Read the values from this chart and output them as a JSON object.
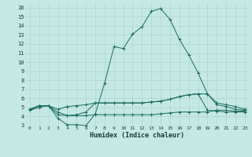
{
  "xlabel": "Humidex (Indice chaleur)",
  "bg_color": "#c5e8e5",
  "grid_color": "#afd4d0",
  "line_color": "#1a6b5e",
  "xlim": [
    -0.5,
    23.5
  ],
  "ylim": [
    3,
    16.5
  ],
  "xticks": [
    0,
    1,
    2,
    3,
    4,
    5,
    6,
    7,
    8,
    9,
    10,
    11,
    12,
    13,
    14,
    15,
    16,
    17,
    18,
    19,
    20,
    21,
    22,
    23
  ],
  "yticks": [
    3,
    4,
    5,
    6,
    7,
    8,
    9,
    10,
    11,
    12,
    13,
    14,
    15,
    16
  ],
  "series": [
    {
      "x": [
        0,
        1,
        2,
        3,
        4,
        5,
        6,
        7,
        8,
        9,
        10,
        11,
        12,
        13,
        14,
        15,
        16,
        17,
        18,
        19,
        20,
        21,
        22,
        23
      ],
      "y": [
        4.7,
        5.0,
        5.2,
        3.8,
        3.1,
        3.1,
        3.0,
        4.3,
        7.7,
        11.7,
        11.5,
        13.1,
        13.9,
        15.6,
        15.9,
        14.7,
        12.5,
        10.8,
        8.8,
        6.5,
        5.3,
        5.1,
        4.8,
        4.7
      ]
    },
    {
      "x": [
        0,
        1,
        2,
        3,
        4,
        5,
        6,
        7,
        8,
        9,
        10,
        11,
        12,
        13,
        14,
        15,
        16,
        17,
        18,
        19,
        20,
        21,
        22,
        23
      ],
      "y": [
        4.8,
        5.2,
        5.2,
        4.8,
        5.1,
        5.2,
        5.3,
        5.5,
        5.5,
        5.5,
        5.5,
        5.5,
        5.5,
        5.6,
        5.7,
        5.9,
        6.2,
        6.4,
        6.5,
        6.5,
        5.5,
        5.3,
        5.1,
        4.8
      ]
    },
    {
      "x": [
        0,
        1,
        2,
        3,
        4,
        5,
        6,
        7,
        8,
        9,
        10,
        11,
        12,
        13,
        14,
        15,
        16,
        17,
        18,
        19,
        20,
        21,
        22,
        23
      ],
      "y": [
        4.8,
        5.2,
        5.2,
        4.5,
        4.1,
        4.2,
        4.5,
        5.5,
        5.5,
        5.5,
        5.5,
        5.5,
        5.5,
        5.6,
        5.7,
        5.9,
        6.2,
        6.4,
        6.5,
        4.7,
        4.6,
        4.5,
        4.5,
        4.5
      ]
    },
    {
      "x": [
        0,
        1,
        2,
        3,
        4,
        5,
        6,
        7,
        8,
        9,
        10,
        11,
        12,
        13,
        14,
        15,
        16,
        17,
        18,
        19,
        20,
        21,
        22,
        23
      ],
      "y": [
        4.7,
        5.2,
        5.2,
        4.2,
        4.1,
        4.1,
        4.1,
        4.2,
        4.2,
        4.2,
        4.2,
        4.2,
        4.2,
        4.2,
        4.3,
        4.4,
        4.5,
        4.5,
        4.5,
        4.5,
        4.7,
        4.7,
        4.6,
        4.6
      ]
    }
  ]
}
